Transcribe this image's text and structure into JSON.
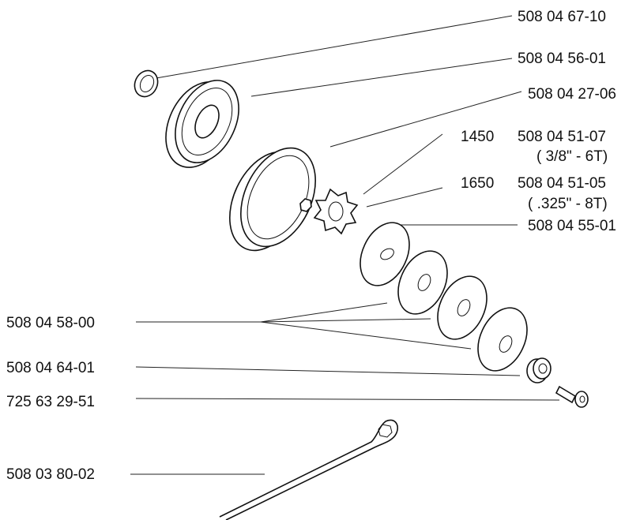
{
  "parts": [
    {
      "part_no": "508 04 67-10"
    },
    {
      "part_no": "508 04 56-01"
    },
    {
      "part_no": "508 04 27-06"
    },
    {
      "model": "1450",
      "part_no": "508 04 51-07",
      "note": "( 3/8\" - 6T)"
    },
    {
      "model": "1650",
      "part_no": "508 04 51-05",
      "note": "( .325\" - 8T)"
    },
    {
      "part_no": "508 04 55-01"
    },
    {
      "part_no": "508 04 58-00"
    },
    {
      "part_no": "508 04 64-01"
    },
    {
      "part_no": "725 63 29-51"
    },
    {
      "part_no": "508 03 80-02"
    }
  ]
}
